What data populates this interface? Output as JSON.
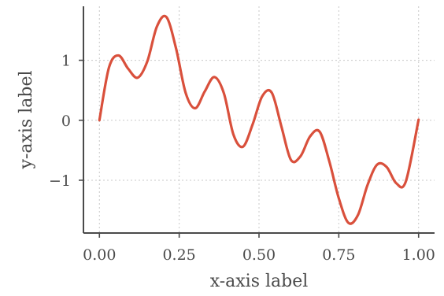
{
  "chart_data": {
    "type": "line",
    "title": "",
    "xlabel": "x-axis label",
    "ylabel": "y-axis label",
    "xlim": [
      -0.05,
      1.05
    ],
    "ylim": [
      -1.88,
      1.9
    ],
    "grid": true,
    "x_ticks": [
      0.0,
      0.25,
      0.5,
      0.75,
      1.0
    ],
    "x_tick_labels": [
      "0.00",
      "0.25",
      "0.50",
      "0.75",
      "1.00"
    ],
    "y_ticks": [
      -1,
      0,
      1
    ],
    "y_tick_labels": [
      "−1",
      "0",
      "1"
    ],
    "colors": {
      "series": "#d9503c",
      "axis": "#4a4a4a",
      "grid": "#c8c8c8"
    },
    "series": [
      {
        "color": "#d9503c",
        "x": [
          0.0,
          0.03,
          0.06,
          0.09,
          0.12,
          0.15,
          0.18,
          0.21,
          0.24,
          0.27,
          0.3,
          0.33,
          0.36,
          0.39,
          0.42,
          0.45,
          0.48,
          0.51,
          0.54,
          0.57,
          0.6,
          0.63,
          0.66,
          0.69,
          0.72,
          0.75,
          0.78,
          0.81,
          0.84,
          0.87,
          0.9,
          0.93,
          0.96,
          1.0
        ],
        "y": [
          0.0,
          0.88,
          1.08,
          0.86,
          0.71,
          0.98,
          1.56,
          1.72,
          1.2,
          0.46,
          0.2,
          0.48,
          0.72,
          0.45,
          -0.24,
          -0.44,
          -0.07,
          0.4,
          0.46,
          -0.1,
          -0.66,
          -0.6,
          -0.27,
          -0.19,
          -0.68,
          -1.3,
          -1.71,
          -1.58,
          -1.08,
          -0.74,
          -0.78,
          -1.05,
          -1.02,
          0.01
        ]
      }
    ]
  }
}
